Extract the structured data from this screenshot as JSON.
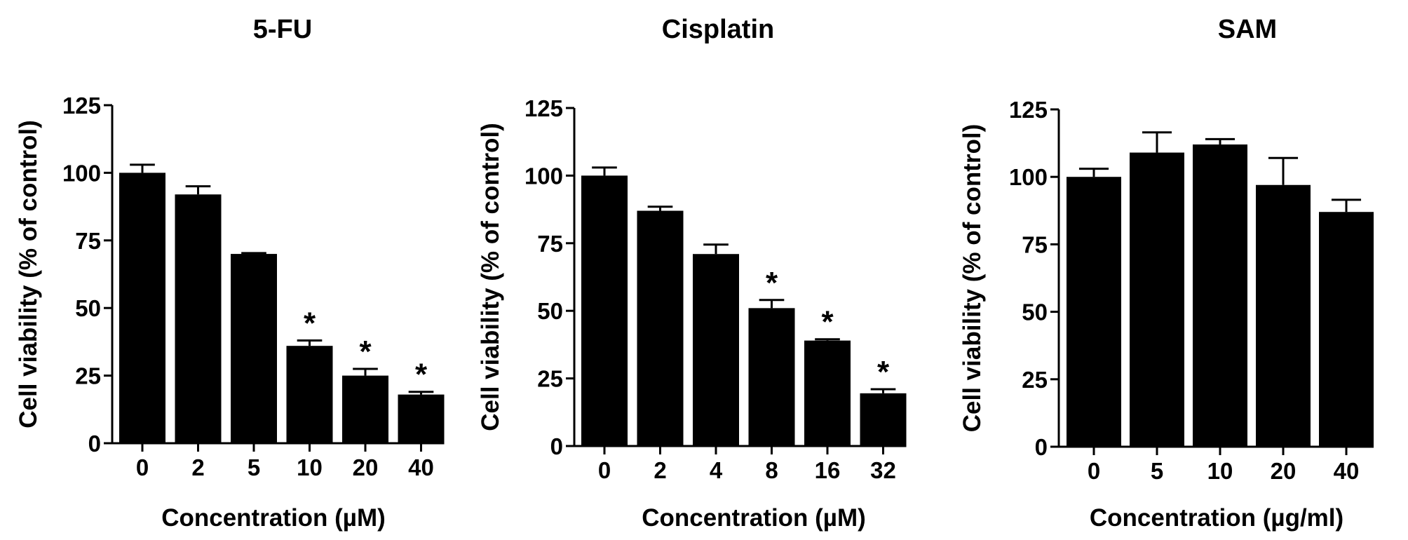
{
  "chart_data": [
    {
      "type": "bar",
      "title": "5-FU",
      "xlabel": "Concentration (µM)",
      "ylabel": "Cell viability (%  of control)",
      "ylim": [
        0,
        125
      ],
      "yticks": [
        "0",
        "25",
        "50",
        "75",
        "100",
        "125"
      ],
      "categories": [
        "0",
        "2",
        "5",
        "10",
        "20",
        "40"
      ],
      "values": [
        100,
        92,
        70,
        36,
        25,
        18
      ],
      "errors": [
        3,
        3,
        0.3,
        2,
        2.5,
        1
      ],
      "significant": [
        false,
        false,
        false,
        true,
        true,
        true
      ],
      "annotation": "*",
      "bar_color": "#000000"
    },
    {
      "type": "bar",
      "title": "Cisplatin",
      "xlabel": "Concentration (µM)",
      "ylabel": "Cell viability (%  of control)",
      "ylim": [
        0,
        125
      ],
      "yticks": [
        "0",
        "25",
        "50",
        "75",
        "100",
        "125"
      ],
      "categories": [
        "0",
        "2",
        "4",
        "8",
        "16",
        "32"
      ],
      "values": [
        100,
        87,
        71,
        51,
        39,
        19.5
      ],
      "errors": [
        3,
        1.5,
        3.5,
        3,
        0.5,
        1.5
      ],
      "significant": [
        false,
        false,
        false,
        true,
        true,
        true
      ],
      "annotation": "*",
      "bar_color": "#000000"
    },
    {
      "type": "bar",
      "title": "SAM",
      "xlabel": "Concentration (µg/ml)",
      "ylabel": "Cell viability (%  of control)",
      "ylim": [
        0,
        125
      ],
      "yticks": [
        "0",
        "25",
        "50",
        "75",
        "100",
        "125"
      ],
      "categories": [
        "0",
        "5",
        "10",
        "20",
        "40"
      ],
      "values": [
        100,
        109,
        112,
        97,
        87
      ],
      "errors": [
        3,
        7.5,
        2,
        10,
        4.5
      ],
      "significant": [
        false,
        false,
        false,
        false,
        false
      ],
      "annotation": "*",
      "bar_color": "#000000"
    }
  ]
}
